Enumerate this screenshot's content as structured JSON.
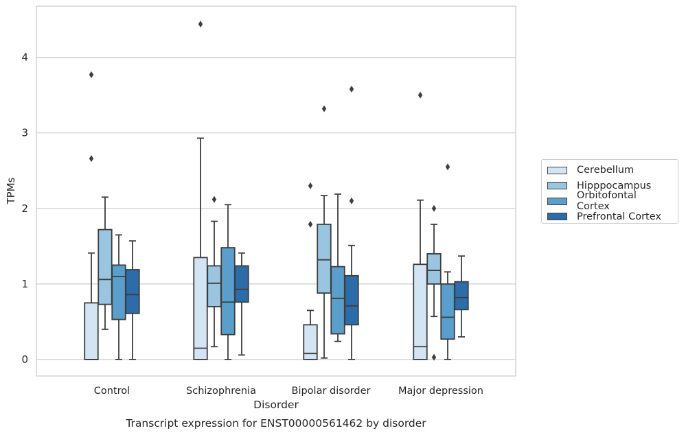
{
  "chart_data": {
    "type": "box",
    "title": "Transcript expression for ENST00000561462 by disorder",
    "xlabel": "Disorder",
    "ylabel": "TPMs",
    "ylim": [
      -0.22,
      4.7
    ],
    "yticks": [
      0,
      1,
      2,
      3,
      4
    ],
    "grid": true,
    "legend_position": "right",
    "categories": [
      "Control",
      "Schizophrenia",
      "Bipolar disorder",
      "Major depression"
    ],
    "series": [
      {
        "name": "Cerebellum",
        "color": "#d3e4f3",
        "boxes": [
          {
            "whislo": 0,
            "q1": 0,
            "med": 0,
            "q3": 0.75,
            "whishi": 1.41,
            "fliers": [
              2.66,
              3.77
            ]
          },
          {
            "whislo": 0,
            "q1": 0,
            "med": 0.15,
            "q3": 1.35,
            "whishi": 2.93,
            "fliers": [
              4.44
            ]
          },
          {
            "whislo": 0,
            "q1": 0,
            "med": 0.08,
            "q3": 0.46,
            "whishi": 0.65,
            "fliers": [
              1.79,
              2.3
            ]
          },
          {
            "whislo": 0,
            "q1": 0,
            "med": 0.17,
            "q3": 1.26,
            "whishi": 2.11,
            "fliers": [
              3.5
            ]
          }
        ]
      },
      {
        "name": "Hipppocampus",
        "color": "#9ac5e0",
        "boxes": [
          {
            "whislo": 0.4,
            "q1": 0.73,
            "med": 1.06,
            "q3": 1.72,
            "whishi": 2.15,
            "fliers": []
          },
          {
            "whislo": 0.17,
            "q1": 0.7,
            "med": 1.01,
            "q3": 1.24,
            "whishi": 1.83,
            "fliers": [
              2.12
            ]
          },
          {
            "whislo": 0.02,
            "q1": 0.88,
            "med": 1.32,
            "q3": 1.79,
            "whishi": 2.17,
            "fliers": [
              3.32
            ]
          },
          {
            "whislo": 0.57,
            "q1": 1.0,
            "med": 1.18,
            "q3": 1.4,
            "whishi": 1.79,
            "fliers": [
              0.03,
              2.0
            ]
          }
        ]
      },
      {
        "name": "Orbitofontal Cortex",
        "color": "#5a9ecc",
        "boxes": [
          {
            "whislo": 0,
            "q1": 0.53,
            "med": 1.1,
            "q3": 1.25,
            "whishi": 1.65,
            "fliers": []
          },
          {
            "whislo": 0,
            "q1": 0.33,
            "med": 0.76,
            "q3": 1.48,
            "whishi": 2.05,
            "fliers": []
          },
          {
            "whislo": 0.24,
            "q1": 0.34,
            "med": 0.81,
            "q3": 1.23,
            "whishi": 2.19,
            "fliers": []
          },
          {
            "whislo": 0,
            "q1": 0.27,
            "med": 0.56,
            "q3": 1.0,
            "whishi": 1.16,
            "fliers": [
              2.55
            ]
          }
        ]
      },
      {
        "name": "Prefrontal Cortex",
        "color": "#2c6ca8",
        "boxes": [
          {
            "whislo": 0,
            "q1": 0.61,
            "med": 0.86,
            "q3": 1.19,
            "whishi": 1.57,
            "fliers": []
          },
          {
            "whislo": 0.06,
            "q1": 0.76,
            "med": 0.93,
            "q3": 1.24,
            "whishi": 1.41,
            "fliers": []
          },
          {
            "whislo": 0,
            "q1": 0.46,
            "med": 0.71,
            "q3": 1.11,
            "whishi": 1.51,
            "fliers": [
              2.1,
              3.58
            ]
          },
          {
            "whislo": 0.3,
            "q1": 0.66,
            "med": 0.82,
            "q3": 1.03,
            "whishi": 1.37,
            "fliers": []
          }
        ]
      }
    ]
  }
}
